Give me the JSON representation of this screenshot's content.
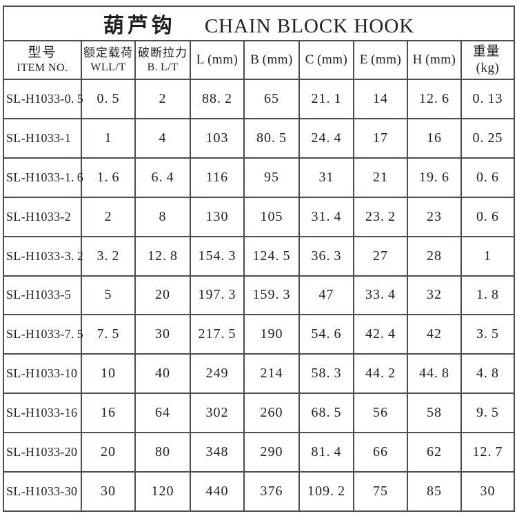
{
  "title": {
    "cn": "葫芦钩",
    "en": "CHAIN BLOCK HOOK"
  },
  "colors": {
    "border": "#554a48",
    "text": "#1f1f1f",
    "background": "#ffffff"
  },
  "table": {
    "headers": [
      {
        "cn": "型号",
        "en": "ITEM NO."
      },
      {
        "cn": "额定载荷",
        "en": "WLL/T"
      },
      {
        "cn": "破断拉力",
        "en": "B.L/T"
      },
      {
        "single": "L(mm)"
      },
      {
        "single": "B(mm)"
      },
      {
        "single": "C(mm)"
      },
      {
        "single": "E(mm)"
      },
      {
        "single": "H(mm)"
      },
      {
        "single": "重量(kg)"
      }
    ],
    "rows": [
      [
        "SL-H1033-0.5",
        "0.5",
        "2",
        "88.2",
        "65",
        "21.1",
        "14",
        "12.6",
        "0.13"
      ],
      [
        "SL-H1033-1",
        "1",
        "4",
        "103",
        "80.5",
        "24.4",
        "17",
        "16",
        "0.25"
      ],
      [
        "SL-H1033-1.6",
        "1.6",
        "6.4",
        "116",
        "95",
        "31",
        "21",
        "19.6",
        "0.6"
      ],
      [
        "SL-H1033-2",
        "2",
        "8",
        "130",
        "105",
        "31.4",
        "23.2",
        "23",
        "0.6"
      ],
      [
        "SL-H1033-3.2",
        "3.2",
        "12.8",
        "154.3",
        "124.5",
        "36.3",
        "27",
        "28",
        "1"
      ],
      [
        "SL-H1033-5",
        "5",
        "20",
        "197.3",
        "159.3",
        "47",
        "33.4",
        "32",
        "1.8"
      ],
      [
        "SL-H1033-7.5",
        "7.5",
        "30",
        "217.5",
        "190",
        "54.6",
        "42.4",
        "42",
        "3.5"
      ],
      [
        "SL-H1033-10",
        "10",
        "40",
        "249",
        "214",
        "58.3",
        "44.2",
        "44.8",
        "4.8"
      ],
      [
        "SL-H1033-16",
        "16",
        "64",
        "302",
        "260",
        "68.5",
        "56",
        "58",
        "9.5"
      ],
      [
        "SL-H1033-20",
        "20",
        "80",
        "348",
        "290",
        "81.4",
        "66",
        "62",
        "12.7"
      ],
      [
        "SL-H1033-30",
        "30",
        "120",
        "440",
        "376",
        "109.2",
        "75",
        "85",
        "30"
      ]
    ]
  }
}
